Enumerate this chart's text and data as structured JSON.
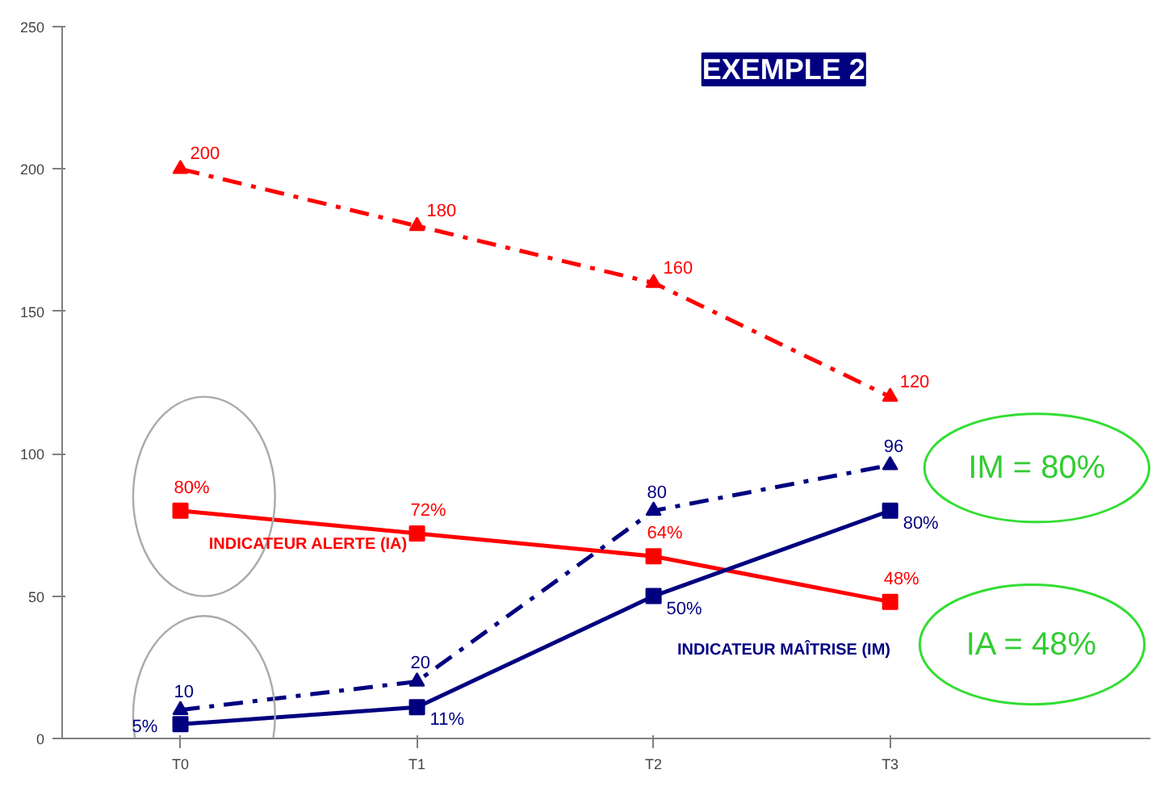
{
  "chart_data": {
    "type": "line",
    "title": "EXEMPLE 2",
    "categories": [
      "T0",
      "T1",
      "T2",
      "T3"
    ],
    "series": [
      {
        "color": "#ff0000",
        "marker": "triangle",
        "line_style": "dashed",
        "values": [
          200,
          180,
          160,
          120
        ],
        "value_labels": [
          "200",
          "180",
          "160",
          "120"
        ]
      },
      {
        "color": "#ff0000",
        "marker": "square",
        "line_style": "solid",
        "values": [
          80,
          72,
          64,
          48
        ],
        "value_labels": [
          "80%",
          "72%",
          "64%",
          "48%"
        ]
      },
      {
        "color": "#000080",
        "marker": "triangle",
        "line_style": "dashed",
        "values": [
          10,
          20,
          80,
          96
        ],
        "value_labels": [
          "10",
          "20",
          "80",
          "96"
        ]
      },
      {
        "color": "#000080",
        "marker": "square",
        "line_style": "solid",
        "values": [
          5,
          11,
          50,
          80
        ],
        "value_labels": [
          "5%",
          "11%",
          "50%",
          "80%"
        ]
      }
    ],
    "annotations": [
      "INDICATEUR ALERTE (IA)",
      "INDICATEUR MAÎTRISE (IM)",
      "IM = 80%",
      "IA = 48%"
    ],
    "ylim": [
      0,
      250
    ],
    "yticks": [
      0,
      50,
      100,
      150,
      200,
      250
    ],
    "grid": false
  }
}
